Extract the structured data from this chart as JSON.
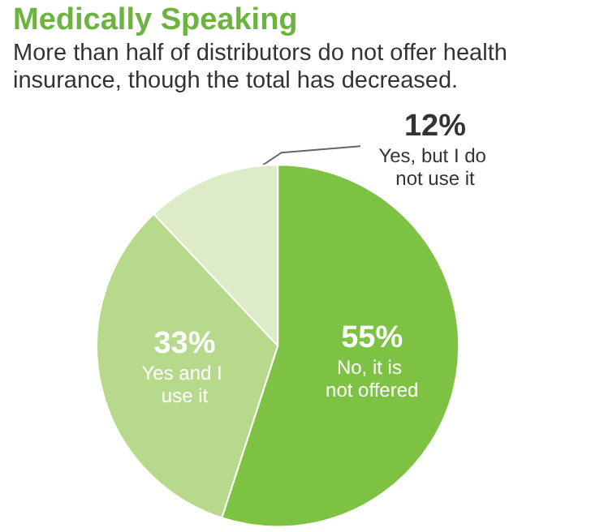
{
  "chart_data": {
    "type": "pie",
    "title": "Medically Speaking",
    "subtitle": "More than half of distributors do not offer health insurance, though the total has decreased.",
    "categories": [
      "No, it is not offered",
      "Yes and I use it",
      "Yes, but I do not use it"
    ],
    "values": [
      55,
      33,
      12
    ],
    "colors": [
      "#7dc242",
      "#b7d98c",
      "#dcebc8"
    ],
    "value_labels": [
      "55%",
      "33%",
      "12%"
    ]
  }
}
